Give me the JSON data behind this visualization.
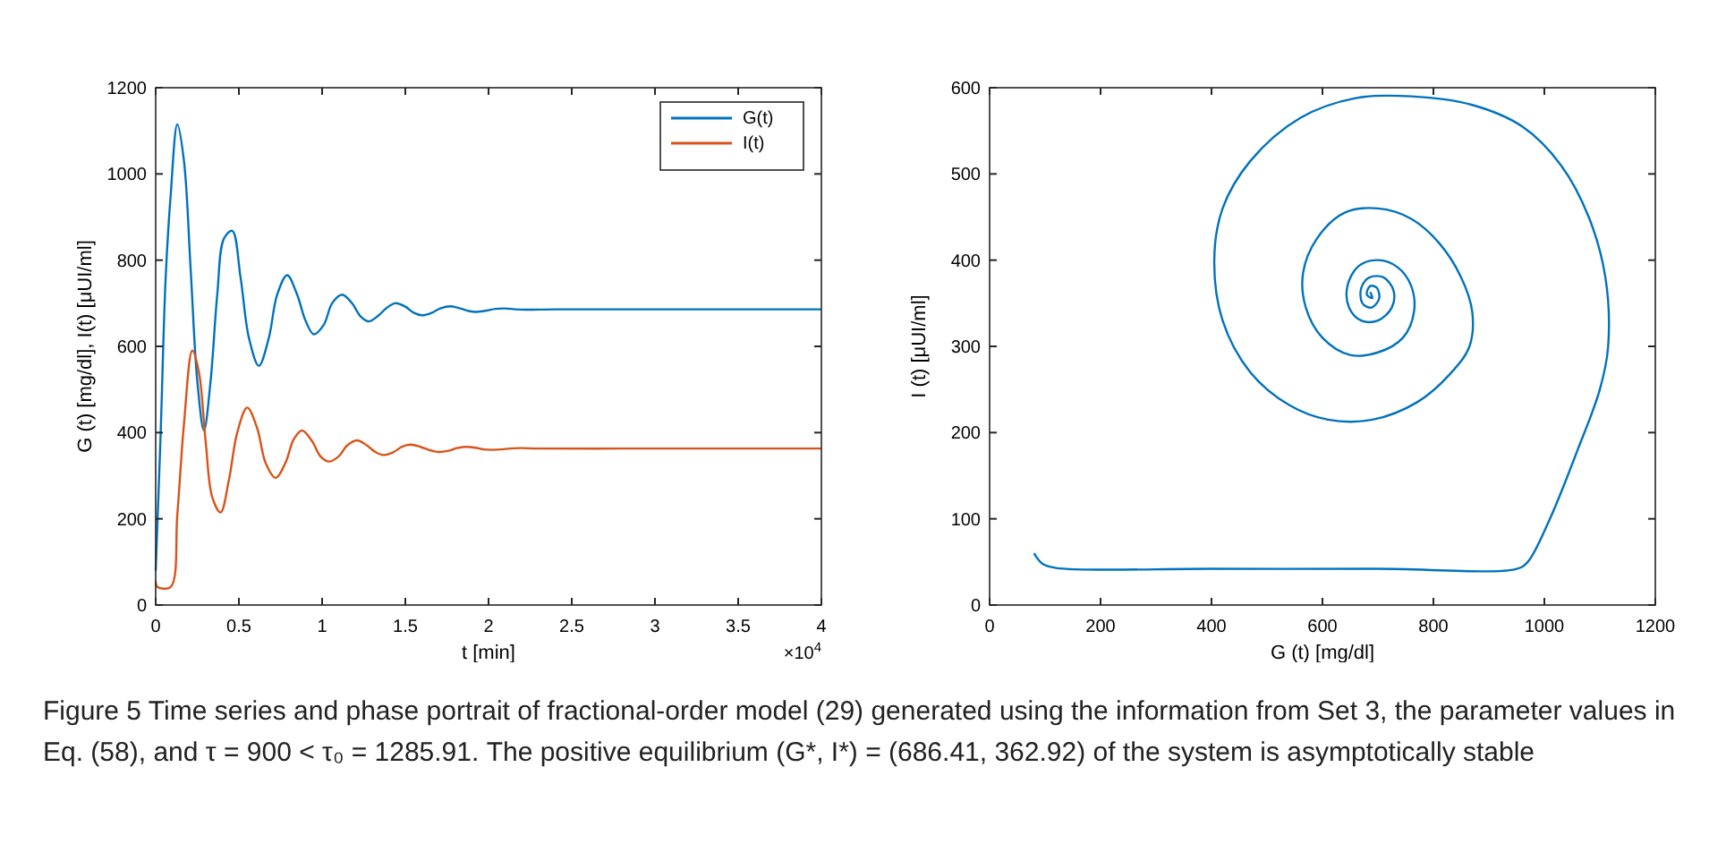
{
  "chart_data": [
    {
      "type": "line",
      "xlabel": "t [min]",
      "ylabel": "G (t) [mg/dl], I(t) [μUI/ml]",
      "xlim": [
        0,
        4
      ],
      "ylim": [
        0,
        1200
      ],
      "xticks": [
        0,
        0.5,
        1,
        1.5,
        2,
        2.5,
        3,
        3.5,
        4
      ],
      "yticks": [
        0,
        200,
        400,
        600,
        800,
        1000,
        1200
      ],
      "legend": "top right",
      "grid": false,
      "annotations": [
        "×10$^{4}$",
        "Figure 5  Time series and phase portrait of fractional-order model (29) generated using the information from Set 3, the parameter values in Eq. (58), and τ = 900 < τ₀ = 1285.91. The positive equilibrium (G*, I*) = (686.41, 362.92) of the system is asymptotically stable"
      ],
      "series": [
        {
          "name": "G(t)",
          "color": "#0072bd",
          "x": [
            0,
            0.03,
            0.06,
            0.09,
            0.13,
            0.17,
            0.21,
            0.25,
            0.29,
            0.33,
            0.37,
            0.41,
            0.46,
            0.51,
            0.56,
            0.62,
            0.68,
            0.73,
            0.79,
            0.85,
            0.9,
            0.95,
            1.01,
            1.06,
            1.12,
            1.18,
            1.23,
            1.28,
            1.34,
            1.39,
            1.44,
            1.5,
            1.55,
            1.6,
            1.66,
            1.71,
            1.77,
            1.83,
            1.88,
            1.93,
            1.99,
            2.04,
            2.1,
            2.16,
            2.22,
            2.4,
            2.8,
            3.4,
            4
          ],
          "values": [
            80,
            400,
            760,
            950,
            1115,
            1030,
            780,
            520,
            405,
            520,
            720,
            850,
            868,
            760,
            620,
            555,
            620,
            720,
            765,
            720,
            660,
            628,
            650,
            700,
            720,
            700,
            670,
            658,
            672,
            690,
            700,
            692,
            678,
            672,
            678,
            688,
            693,
            688,
            682,
            680,
            683,
            687,
            688,
            686,
            685,
            686,
            686,
            686,
            686
          ]
        },
        {
          "name": "I(t)",
          "color": "#d95319",
          "x": [
            0,
            0.01,
            0.09,
            0.13,
            0.17,
            0.22,
            0.26,
            0.3,
            0.34,
            0.39,
            0.44,
            0.49,
            0.55,
            0.61,
            0.66,
            0.72,
            0.78,
            0.83,
            0.88,
            0.94,
            0.99,
            1.04,
            1.1,
            1.15,
            1.21,
            1.27,
            1.32,
            1.37,
            1.43,
            1.48,
            1.53,
            1.59,
            1.64,
            1.7,
            1.76,
            1.81,
            1.86,
            1.92,
            1.97,
            2.02,
            2.08,
            2.13,
            2.19,
            2.3,
            2.8,
            3.4,
            4
          ],
          "values": [
            55,
            42,
            42,
            210,
            420,
            590,
            540,
            380,
            250,
            215,
            290,
            400,
            458,
            410,
            330,
            295,
            330,
            385,
            405,
            380,
            345,
            333,
            345,
            370,
            382,
            370,
            355,
            348,
            355,
            367,
            372,
            367,
            360,
            355,
            358,
            364,
            367,
            365,
            361,
            360,
            361,
            363,
            364,
            363,
            363,
            363,
            363
          ]
        }
      ]
    },
    {
      "type": "line",
      "xlabel": "G (t) [mg/dl]",
      "ylabel": "I (t) [μUI/ml]",
      "xlim": [
        0,
        1200
      ],
      "ylim": [
        0,
        600
      ],
      "xticks": [
        0,
        200,
        400,
        600,
        800,
        1000,
        1200
      ],
      "yticks": [
        0,
        100,
        200,
        300,
        400,
        500,
        600
      ],
      "grid": false,
      "series": [
        {
          "color": "#0072bd",
          "x": [
            80,
            95,
            120,
            400,
            700,
            950,
            970,
            1010,
            1060,
            1100,
            1115,
            1110,
            1080,
            1030,
            960,
            870,
            760,
            660,
            560,
            470,
            420,
            405,
            420,
            470,
            540,
            610,
            690,
            770,
            830,
            865,
            870,
            850,
            810,
            760,
            700,
            640,
            590,
            565,
            570,
            600,
            650,
            700,
            745,
            765,
            760,
            735,
            700,
            665,
            645,
            648,
            670,
            700,
            725,
            728,
            710,
            685,
            670,
            672,
            688,
            702,
            698,
            686,
            680,
            690,
            686
          ],
          "values": [
            60,
            48,
            43,
            42,
            42,
            42,
            50,
            100,
            180,
            250,
            300,
            380,
            450,
            510,
            555,
            580,
            590,
            588,
            565,
            515,
            460,
            400,
            330,
            270,
            232,
            215,
            215,
            235,
            268,
            300,
            340,
            380,
            420,
            448,
            460,
            455,
            425,
            385,
            345,
            310,
            290,
            293,
            310,
            340,
            370,
            392,
            400,
            393,
            370,
            345,
            330,
            330,
            345,
            365,
            380,
            380,
            368,
            350,
            345,
            355,
            368,
            370,
            360,
            356,
            363
          ]
        }
      ]
    }
  ]
}
